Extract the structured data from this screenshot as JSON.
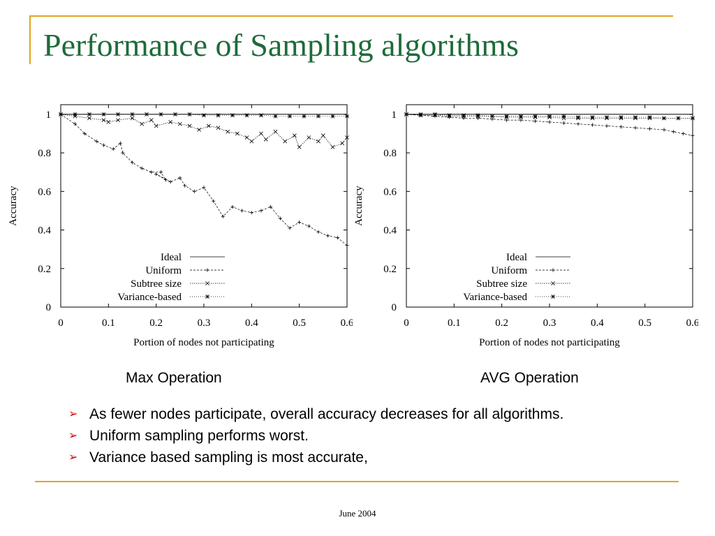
{
  "slide": {
    "title": "Performance of Sampling algorithms",
    "captions": [
      "Max Operation",
      "AVG Operation"
    ],
    "bullets": [
      "As fewer nodes participate, overall accuracy decreases for all algorithms.",
      "Uniform sampling performs worst.",
      "Variance based sampling is most accurate,"
    ],
    "footer": "June 2004",
    "colors": {
      "title": "#1e6b3a",
      "accent_line": "#e0a61e",
      "bullet_arrow": "#d80000"
    }
  },
  "chart_data": [
    {
      "type": "line",
      "title": "",
      "xlabel": "Portion of nodes not participating",
      "ylabel": "Accuracy",
      "xlim": [
        0,
        0.6
      ],
      "ylim": [
        0,
        1.05
      ],
      "xticks": [
        "0",
        "0.1",
        "0.2",
        "0.3",
        "0.4",
        "0.5",
        "0.6"
      ],
      "yticks": [
        "0",
        "0.2",
        "0.4",
        "0.6",
        "0.8",
        "1"
      ],
      "legend_position": "bottom-right",
      "grid": false,
      "series": [
        {
          "name": "Ideal",
          "marker": "none",
          "x": [
            0,
            0.6
          ],
          "y": [
            1,
            1
          ]
        },
        {
          "name": "Uniform",
          "marker": "plus",
          "x": [
            0,
            0.03,
            0.05,
            0.075,
            0.09,
            0.11,
            0.125,
            0.13,
            0.15,
            0.17,
            0.19,
            0.21,
            0.22,
            0.2,
            0.23,
            0.25,
            0.26,
            0.28,
            0.3,
            0.32,
            0.34,
            0.36,
            0.38,
            0.4,
            0.42,
            0.44,
            0.46,
            0.48,
            0.5,
            0.52,
            0.54,
            0.56,
            0.58,
            0.6
          ],
          "y": [
            1,
            0.95,
            0.9,
            0.86,
            0.84,
            0.82,
            0.85,
            0.8,
            0.75,
            0.72,
            0.7,
            0.7,
            0.66,
            0.69,
            0.65,
            0.67,
            0.63,
            0.6,
            0.62,
            0.55,
            0.47,
            0.52,
            0.5,
            0.49,
            0.5,
            0.52,
            0.46,
            0.41,
            0.44,
            0.42,
            0.39,
            0.37,
            0.36,
            0.32
          ]
        },
        {
          "name": "Subtree size",
          "marker": "x",
          "x": [
            0,
            0.03,
            0.06,
            0.09,
            0.1,
            0.12,
            0.15,
            0.17,
            0.19,
            0.2,
            0.23,
            0.25,
            0.27,
            0.29,
            0.31,
            0.33,
            0.35,
            0.37,
            0.39,
            0.4,
            0.42,
            0.43,
            0.45,
            0.47,
            0.49,
            0.5,
            0.52,
            0.54,
            0.55,
            0.57,
            0.59,
            0.6
          ],
          "y": [
            1,
            0.99,
            0.98,
            0.97,
            0.96,
            0.97,
            0.98,
            0.95,
            0.97,
            0.94,
            0.96,
            0.95,
            0.94,
            0.92,
            0.94,
            0.93,
            0.91,
            0.9,
            0.88,
            0.86,
            0.9,
            0.87,
            0.91,
            0.86,
            0.89,
            0.83,
            0.88,
            0.86,
            0.89,
            0.83,
            0.85,
            0.88
          ]
        },
        {
          "name": "Variance-based",
          "marker": "star",
          "x": [
            0,
            0.03,
            0.06,
            0.09,
            0.12,
            0.15,
            0.18,
            0.21,
            0.24,
            0.27,
            0.3,
            0.33,
            0.36,
            0.39,
            0.42,
            0.45,
            0.48,
            0.51,
            0.54,
            0.57,
            0.6
          ],
          "y": [
            1,
            1,
            1,
            1,
            1,
            1,
            1,
            1,
            1,
            1,
            0.995,
            0.995,
            0.995,
            0.995,
            0.995,
            0.99,
            0.99,
            0.99,
            0.99,
            0.99,
            0.99
          ]
        }
      ]
    },
    {
      "type": "line",
      "title": "",
      "xlabel": "Portion of nodes not participating",
      "ylabel": "Accuracy",
      "xlim": [
        0,
        0.6
      ],
      "ylim": [
        0,
        1.05
      ],
      "xticks": [
        "0",
        "0.1",
        "0.2",
        "0.3",
        "0.4",
        "0.5",
        "0.6"
      ],
      "yticks": [
        "0",
        "0.2",
        "0.4",
        "0.6",
        "0.8",
        "1"
      ],
      "legend_position": "bottom-right",
      "grid": false,
      "series": [
        {
          "name": "Ideal",
          "marker": "none",
          "x": [
            0,
            0.6
          ],
          "y": [
            1,
            1
          ]
        },
        {
          "name": "Uniform",
          "marker": "plus",
          "x": [
            0,
            0.03,
            0.06,
            0.09,
            0.12,
            0.15,
            0.18,
            0.21,
            0.24,
            0.27,
            0.3,
            0.33,
            0.36,
            0.39,
            0.42,
            0.45,
            0.48,
            0.51,
            0.54,
            0.56,
            0.58,
            0.6
          ],
          "y": [
            1,
            0.995,
            0.99,
            0.985,
            0.98,
            0.98,
            0.975,
            0.97,
            0.97,
            0.965,
            0.96,
            0.955,
            0.95,
            0.945,
            0.94,
            0.935,
            0.93,
            0.925,
            0.92,
            0.91,
            0.9,
            0.89
          ]
        },
        {
          "name": "Subtree size",
          "marker": "x",
          "x": [
            0,
            0.03,
            0.06,
            0.09,
            0.12,
            0.15,
            0.18,
            0.21,
            0.24,
            0.27,
            0.3,
            0.33,
            0.36,
            0.39,
            0.42,
            0.45,
            0.48,
            0.51,
            0.54,
            0.57,
            0.6
          ],
          "y": [
            1,
            0.995,
            0.995,
            0.99,
            0.99,
            0.99,
            0.99,
            0.985,
            0.985,
            0.985,
            0.985,
            0.98,
            0.98,
            0.98,
            0.98,
            0.98,
            0.98,
            0.98,
            0.98,
            0.98,
            0.98
          ]
        },
        {
          "name": "Variance-based",
          "marker": "star",
          "x": [
            0,
            0.03,
            0.06,
            0.09,
            0.12,
            0.15,
            0.18,
            0.21,
            0.24,
            0.27,
            0.3,
            0.33,
            0.36,
            0.39,
            0.42,
            0.45,
            0.48,
            0.51,
            0.54,
            0.57,
            0.6
          ],
          "y": [
            1,
            1,
            1,
            0.995,
            0.995,
            0.995,
            0.99,
            0.99,
            0.99,
            0.99,
            0.99,
            0.99,
            0.985,
            0.985,
            0.985,
            0.985,
            0.985,
            0.985,
            0.98,
            0.98,
            0.98
          ]
        }
      ]
    }
  ]
}
